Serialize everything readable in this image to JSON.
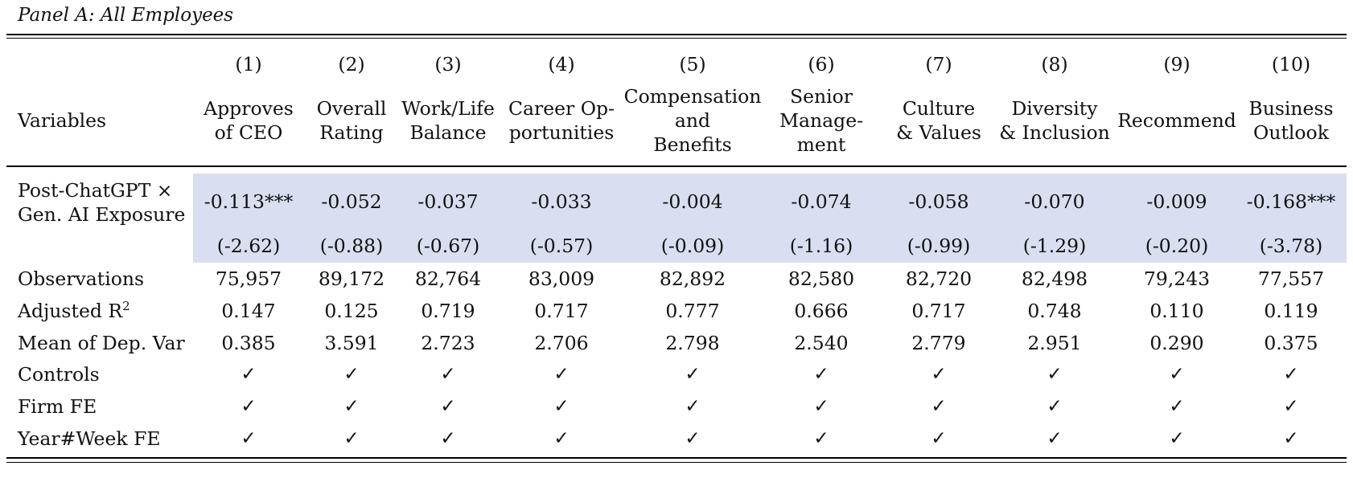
{
  "panel_title": "Panel A: All Employees",
  "column_numbers": [
    "(1)",
    "(2)",
    "(3)",
    "(4)",
    "(5)",
    "(6)",
    "(7)",
    "(8)",
    "(9)",
    "(10)"
  ],
  "column_headers": [
    [
      "Approves",
      "of CEO"
    ],
    [
      "Overall",
      "Rating"
    ],
    [
      "Work/Life",
      "Balance"
    ],
    [
      "Career Op-",
      "portunities"
    ],
    [
      "Compensation",
      "and",
      "Benefits"
    ],
    [
      "Senior",
      "Manage-",
      "ment"
    ],
    [
      "Culture",
      "& Values"
    ],
    [
      "Diversity",
      "& Inclusion"
    ],
    [
      "Recommend"
    ],
    [
      "Business",
      "Outlook"
    ]
  ],
  "variables_label": "Variables",
  "main_row": {
    "label_line1": "Post-ChatGPT ×",
    "label_line2": "Gen. AI Exposure",
    "coefficients": [
      "-0.113***",
      "-0.052",
      "-0.037",
      "-0.033",
      "-0.004",
      "-0.074",
      "-0.058",
      "-0.070",
      "-0.009",
      "-0.168***"
    ],
    "t_stats": [
      "(-2.62)",
      "(-0.88)",
      "(-0.67)",
      "(-0.57)",
      "(-0.09)",
      "(-1.16)",
      "(-0.99)",
      "(-1.29)",
      "(-0.20)",
      "(-3.78)"
    ],
    "highlight_color": "#d9def0"
  },
  "stat_rows": [
    {
      "label": "Observations",
      "values": [
        "75,957",
        "89,172",
        "82,764",
        "83,009",
        "82,892",
        "82,580",
        "82,720",
        "82,498",
        "79,243",
        "77,557"
      ]
    },
    {
      "label": "Adjusted R",
      "label_sup": "2",
      "values": [
        "0.147",
        "0.125",
        "0.719",
        "0.717",
        "0.777",
        "0.666",
        "0.717",
        "0.748",
        "0.110",
        "0.119"
      ]
    },
    {
      "label": "Mean of Dep. Var",
      "values": [
        "0.385",
        "3.591",
        "2.723",
        "2.706",
        "2.798",
        "2.540",
        "2.779",
        "2.951",
        "0.290",
        "0.375"
      ]
    }
  ],
  "check_rows": [
    {
      "label": "Controls",
      "mark": "✓"
    },
    {
      "label": "Firm FE",
      "mark": "✓"
    },
    {
      "label": "Year#Week FE",
      "mark": "✓"
    }
  ]
}
